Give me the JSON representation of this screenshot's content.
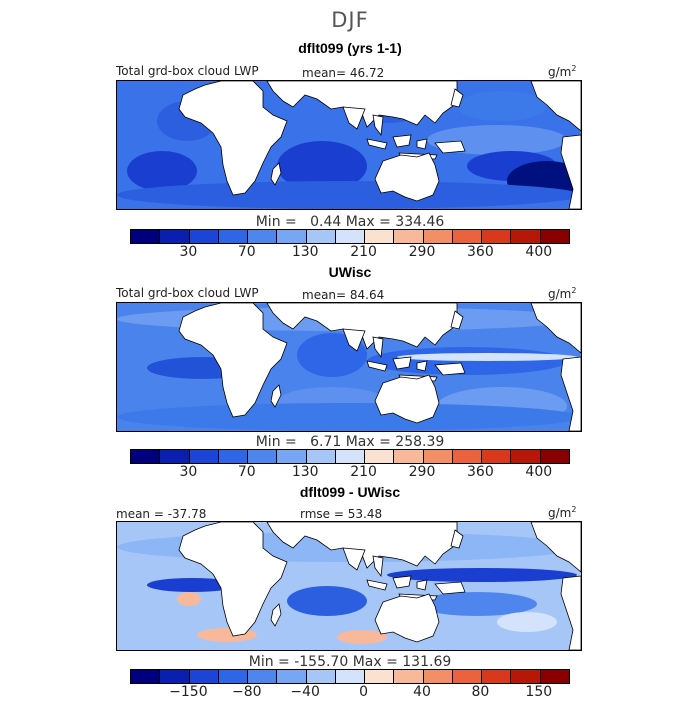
{
  "figure": {
    "season": "DJF"
  },
  "panels": [
    {
      "title": "dflt099 (yrs 1-1)",
      "left_label": "Total grd-box cloud LWP",
      "center_label": "mean=  46.72",
      "unit": "g/m",
      "unit_sup": "2",
      "minmax": "Min =   0.44 Max = 334.46",
      "field": "lwp_model"
    },
    {
      "title": "UWisc",
      "left_label": "Total grd-box cloud LWP",
      "center_label": "mean=  84.64",
      "unit": "g/m",
      "unit_sup": "2",
      "minmax": "Min =   6.71 Max = 258.39",
      "field": "lwp_obs"
    },
    {
      "title": "dflt099 - UWisc",
      "left_label": "mean = -37.78",
      "center_label": "rmse =  53.48",
      "unit": "g/m",
      "unit_sup": "2",
      "minmax": "Min = -155.70 Max = 131.69",
      "field": "lwp_diff"
    }
  ],
  "colorbars": {
    "absolute": {
      "colors": [
        "#00007f",
        "#0a1fb0",
        "#1c45d7",
        "#2f66e8",
        "#4f86ee",
        "#77a6f4",
        "#a6c6f8",
        "#d4e3fb",
        "#fbe1cf",
        "#f8b99a",
        "#f28f67",
        "#ea623e",
        "#d8391d",
        "#b51806",
        "#8a0000"
      ],
      "tick_labels": [
        "30",
        "70",
        "130",
        "210",
        "290",
        "360",
        "400"
      ]
    },
    "difference": {
      "colors": [
        "#00007f",
        "#0a1fb0",
        "#1c45d7",
        "#2f66e8",
        "#4f86ee",
        "#77a6f4",
        "#a6c6f8",
        "#d4e3fb",
        "#fbe1cf",
        "#f8b99a",
        "#f28f67",
        "#ea623e",
        "#d8391d",
        "#b51806",
        "#8a0000"
      ],
      "tick_labels": [
        "−150",
        "−80",
        "−40",
        "0",
        "40",
        "80",
        "150"
      ]
    }
  }
}
